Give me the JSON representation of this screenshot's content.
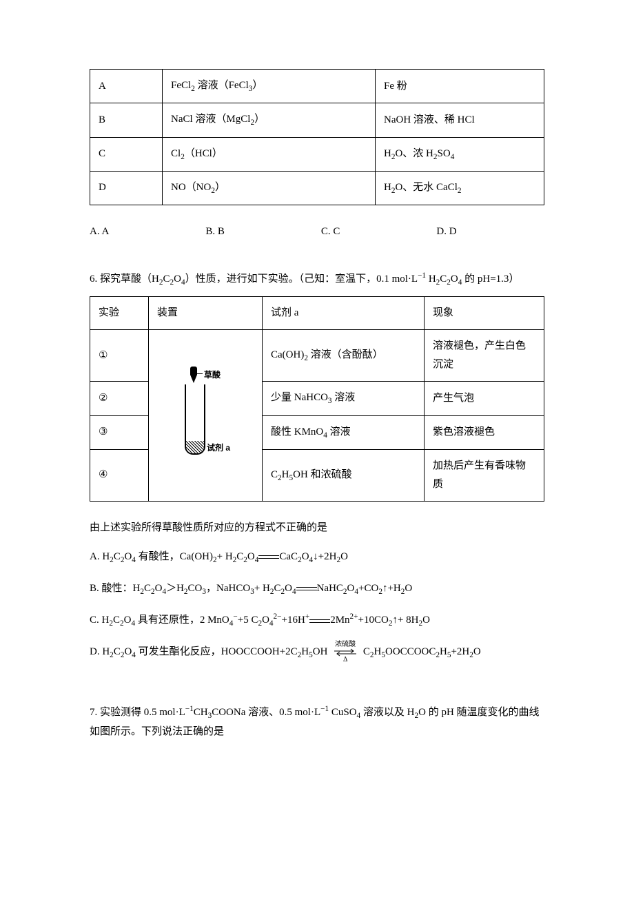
{
  "table1": {
    "columns": [
      "",
      "",
      ""
    ],
    "rows": [
      {
        "key": "A",
        "c1": "FeCl<sub>2</sub> 溶液（FeCl<sub>3</sub>）",
        "c2": "Fe 粉"
      },
      {
        "key": "B",
        "c1": "NaCl 溶液（MgCl<sub>2</sub>）",
        "c2": "NaOH 溶液、稀 HCl"
      },
      {
        "key": "C",
        "c1": "Cl<sub>2</sub>（HCl）",
        "c2": "H<sub>2</sub>O、浓 H<sub>2</sub>SO<sub>4</sub>"
      },
      {
        "key": "D",
        "c1": "NO（NO<sub>2</sub>）",
        "c2": "H<sub>2</sub>O、无水 CaCl<sub>2</sub>"
      }
    ]
  },
  "options5": {
    "a": "A. A",
    "b": "B. B",
    "c": "C. C",
    "d": "D. D"
  },
  "q6": {
    "stem": "6. 探究草酸（H<sub>2</sub>C<sub>2</sub>O<sub>4</sub>）性质，进行如下实验。（己知：室温下，0.1 mol·L<sup>−1</sup> H<sub>2</sub>C<sub>2</sub>O<sub>4</sub> 的 pH=1.3）",
    "headers": {
      "exp": "实验",
      "app": "装置",
      "rea": "试剂 a",
      "phe": "现象"
    },
    "apparatus": {
      "top": "草酸",
      "bottom": "试剂 a"
    },
    "rows": [
      {
        "n": "①",
        "rea": "Ca(OH)<sub>2</sub> 溶液（含酚酞）",
        "phe": "溶液褪色，产生白色沉淀"
      },
      {
        "n": "②",
        "rea": "少量 NaHCO<sub>3</sub> 溶液",
        "phe": "产生气泡"
      },
      {
        "n": "③",
        "rea": "酸性 KMnO<sub>4</sub> 溶液",
        "phe": "紫色溶液褪色"
      },
      {
        "n": "④",
        "rea": "C<sub>2</sub>H<sub>5</sub>OH 和浓硫酸",
        "phe": "加热后产生有香味物质"
      }
    ],
    "afterText": "由上述实验所得草酸性质所对应的方程式不正确的是",
    "choices": {
      "a": "A. H<sub>2</sub>C<sub>2</sub>O<sub>4</sub> 有酸性，Ca(OH)<sub>2</sub>+ H<sub>2</sub>C<sub>2</sub>O<sub>4</sub><span class=\"eq-arrow\"></span>CaC<sub>2</sub>O<sub>4</sub>↓+2H<sub>2</sub>O",
      "b": "B. 酸性：H<sub>2</sub>C<sub>2</sub>O<sub>4</sub>＞H<sub>2</sub>CO<sub>3</sub>，NaHCO<sub>3</sub>+ H<sub>2</sub>C<sub>2</sub>O<sub>4</sub><span class=\"eq-arrow\"></span>NaHC<sub>2</sub>O<sub>4</sub>+CO<sub>2</sub>↑+H<sub>2</sub>O",
      "c": "C. H<sub>2</sub>C<sub>2</sub>O<sub>4</sub> 具有还原性，2 MnO<sub>4</sub><sup>−</sup>+5 C<sub>2</sub>O<sub>4</sub><sup>2−</sup>+16H<sup>+</sup><span class=\"eq-arrow\"></span>2Mn<sup>2+</sup>+10CO<sub>2</sub>↑+ 8H<sub>2</sub>O",
      "d_pre": "D. H<sub>2</sub>C<sub>2</sub>O<sub>4</sub> 可发生酯化反应，HOOCCOOH+2C<sub>2</sub>H<sub>5</sub>OH ",
      "d_cond_top": "浓硫酸",
      "d_cond_bot": "Δ",
      "d_post": " C<sub>2</sub>H<sub>5</sub>OOCCOOC<sub>2</sub>H<sub>5</sub>+2H<sub>2</sub>O"
    }
  },
  "q7": {
    "stem": "7. 实验测得 0.5 mol·L<sup>−1</sup>CH<sub>3</sub>COONa 溶液、0.5 mol·L<sup>−1</sup> CuSO<sub>4</sub> 溶液以及 H<sub>2</sub>O 的 pH 随温度变化的曲线如图所示。下列说法正确的是"
  }
}
